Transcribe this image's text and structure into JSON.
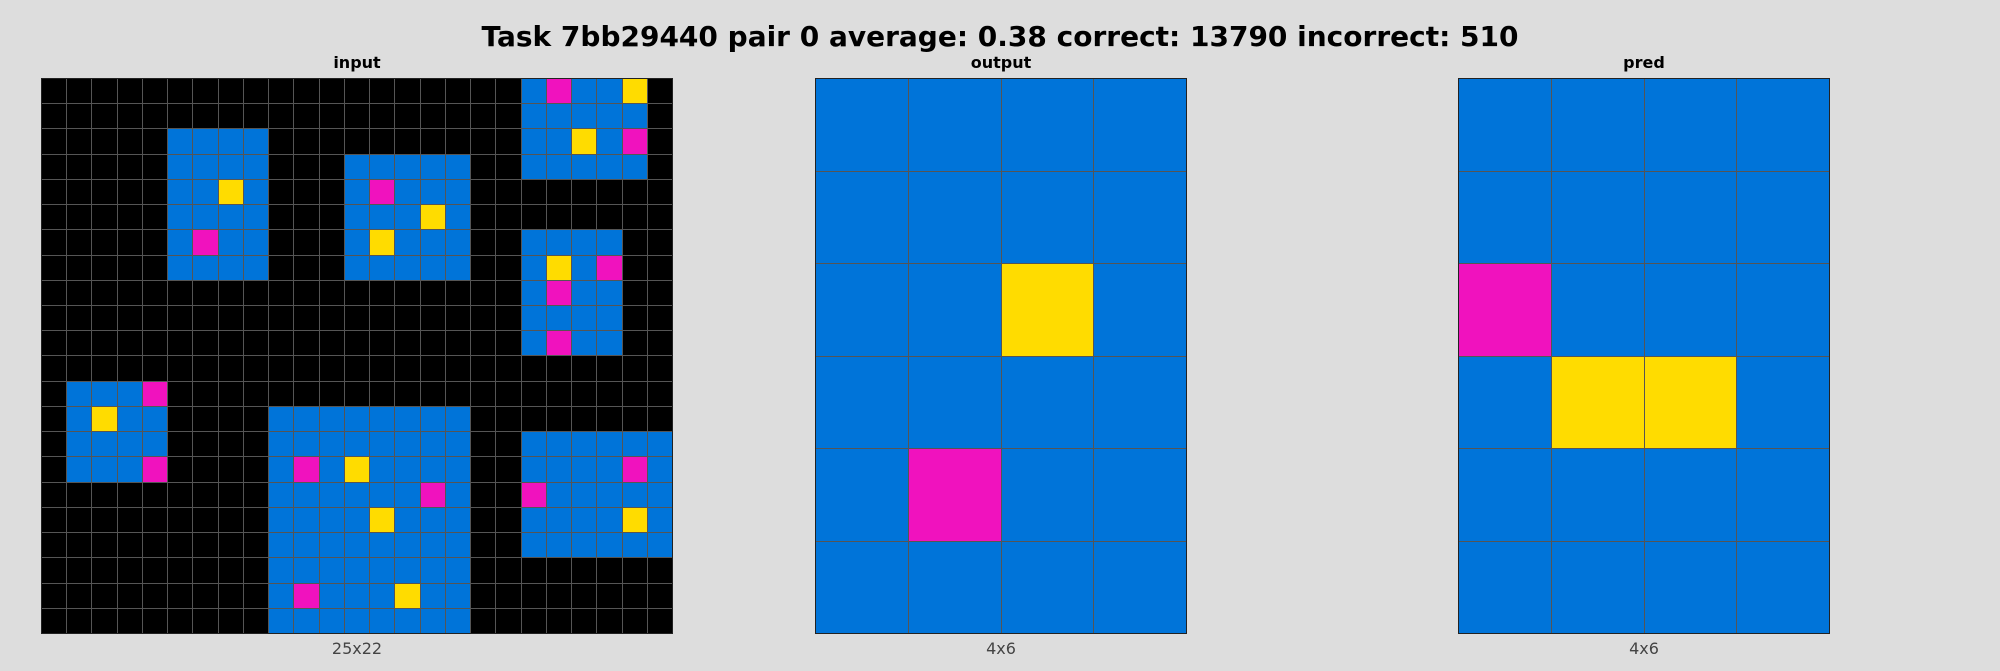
{
  "title": "Task 7bb29440 pair 0 average: 0.38 correct: 13790 incorrect: 510",
  "palette": {
    "0": "#000000",
    "1": "#0074D9",
    "4": "#FFDC00",
    "6": "#F012BE"
  },
  "panels": [
    {
      "label": "input",
      "dims": "25x22",
      "rows": [
        "0000000000000000000161140",
        "0000000000000000000111110",
        "0000011110000000000114160",
        "0000011110001111100111110",
        "0000011410001611100000000",
        "0000011110001114100000000",
        "0000016110001411100111100",
        "0000011110001111100141600",
        "0000000000000000000161100",
        "0000000000000000000111100",
        "0000000000000000000161100",
        "0000000000000000000000000",
        "0111600000000000000000000",
        "0141100001111111100000000",
        "0111100001111111100111111",
        "0111600001614111100111161",
        "0000000001111116100611111",
        "0000000001111411100111141",
        "0000000001111111100111111",
        "0000000001111111100000000",
        "0000000001611141100000000",
        "0000000001111111100000000"
      ]
    },
    {
      "label": "output",
      "dims": "4x6",
      "rows": [
        "1111",
        "1111",
        "1141",
        "1111",
        "1611",
        "1111"
      ]
    },
    {
      "label": "pred",
      "dims": "4x6",
      "rows": [
        "1111",
        "1111",
        "6111",
        "1441",
        "1111",
        "1111"
      ]
    }
  ]
}
